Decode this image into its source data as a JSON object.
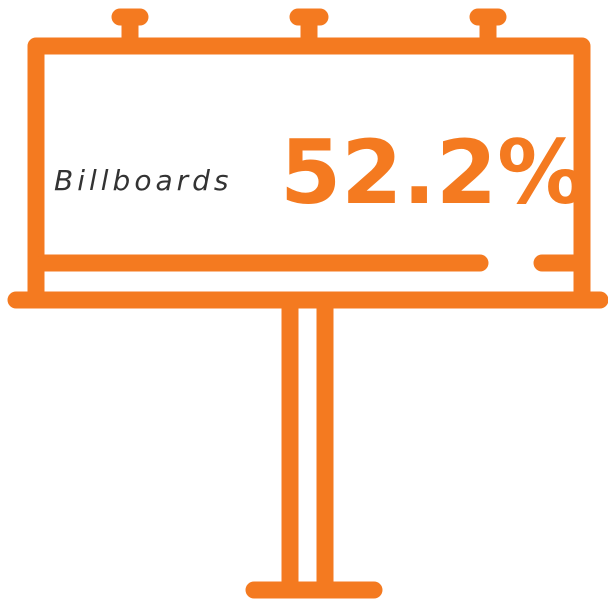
{
  "label": "Billboards",
  "value_label": "52.2%"
}
